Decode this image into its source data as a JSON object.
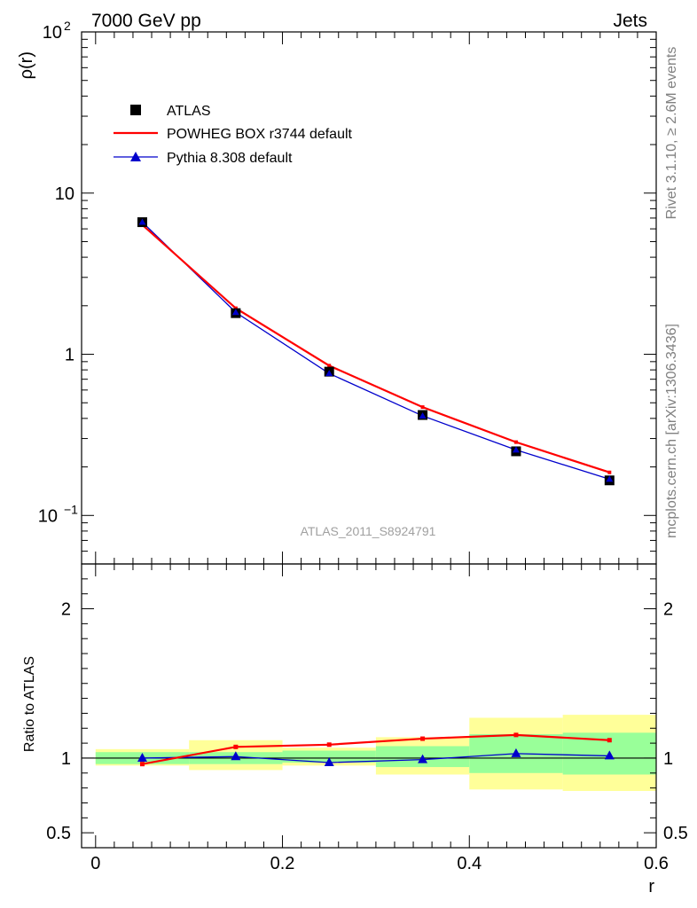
{
  "header": {
    "left": "7000 GeV pp",
    "right": "Jets"
  },
  "side_labels": {
    "rivet": "Rivet 3.1.10, ≥ 2.6M events",
    "mcplots": "mcplots.cern.ch [arXiv:1306.3436]"
  },
  "watermark": "ATLAS_2011_S8924791",
  "legend": {
    "atlas": "ATLAS",
    "powheg": "POWHEG BOX r3744 default",
    "pythia": "Pythia 8.308 default"
  },
  "colors": {
    "atlas": "#000000",
    "powheg": "#ff0000",
    "pythia": "#0000cc",
    "band_inner": "#99ff99",
    "band_outer": "#ffff99"
  },
  "chart_data": [
    {
      "type": "line",
      "ylabel": "ρ(r)",
      "yscale": "log",
      "ylim": [
        0.05,
        100
      ],
      "xlim": [
        -0.015,
        0.6
      ],
      "y_tick_labels": [
        {
          "value": 100,
          "base": "10",
          "exp": "2"
        },
        {
          "value": 10,
          "base": "10",
          "exp": ""
        },
        {
          "value": 1,
          "base": "1",
          "exp": ""
        },
        {
          "value": 0.1,
          "base": "10",
          "exp": "−1"
        }
      ],
      "x": [
        0.05,
        0.15,
        0.25,
        0.35,
        0.45,
        0.55
      ],
      "series": [
        {
          "name": "ATLAS",
          "style": "markers",
          "values": [
            6.6,
            1.8,
            0.78,
            0.42,
            0.25,
            0.165
          ]
        },
        {
          "name": "POWHEG BOX r3744 default",
          "style": "line",
          "values": [
            6.35,
            1.93,
            0.85,
            0.47,
            0.285,
            0.185
          ]
        },
        {
          "name": "Pythia 8.308 default",
          "style": "line-triangles",
          "values": [
            6.6,
            1.82,
            0.76,
            0.415,
            0.255,
            0.168
          ]
        }
      ]
    },
    {
      "type": "line",
      "ylabel": "Ratio to ATLAS",
      "xlabel": "r",
      "ylim": [
        0.4,
        2.3
      ],
      "xlim": [
        -0.015,
        0.6
      ],
      "x_ticks": [
        0,
        0.2,
        0.4,
        0.6
      ],
      "x_tick_labels": [
        "0",
        "0.2",
        "0.4",
        "0.6"
      ],
      "y_ticks": [
        0.5,
        1,
        2
      ],
      "y_tick_labels": [
        "0.5",
        "1",
        "2"
      ],
      "x": [
        0.05,
        0.15,
        0.25,
        0.35,
        0.45,
        0.55
      ],
      "bins": [
        [
          0.0,
          0.1
        ],
        [
          0.1,
          0.2
        ],
        [
          0.2,
          0.3
        ],
        [
          0.3,
          0.4
        ],
        [
          0.4,
          0.5
        ],
        [
          0.5,
          0.6
        ]
      ],
      "band_inner": [
        [
          0.96,
          1.04
        ],
        [
          0.96,
          1.04
        ],
        [
          0.97,
          1.05
        ],
        [
          0.94,
          1.08
        ],
        [
          0.9,
          1.16
        ],
        [
          0.89,
          1.17
        ]
      ],
      "band_outer": [
        [
          0.95,
          1.06
        ],
        [
          0.92,
          1.12
        ],
        [
          0.95,
          1.07
        ],
        [
          0.89,
          1.14
        ],
        [
          0.79,
          1.27
        ],
        [
          0.78,
          1.29
        ]
      ],
      "series": [
        {
          "name": "POWHEG BOX r3744 default",
          "values": [
            0.96,
            1.075,
            1.09,
            1.13,
            1.155,
            1.12
          ]
        },
        {
          "name": "Pythia 8.308 default",
          "values": [
            1.0,
            1.01,
            0.97,
            0.99,
            1.03,
            1.015
          ]
        }
      ]
    }
  ]
}
